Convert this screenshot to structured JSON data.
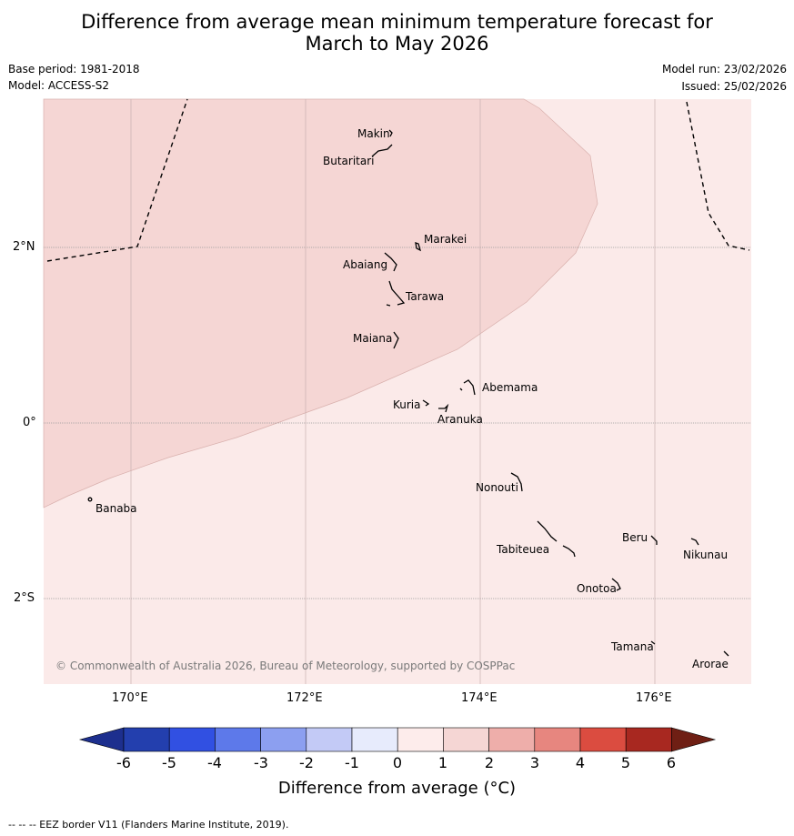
{
  "title": {
    "line1": "Difference from average mean minimum temperature forecast for",
    "line2": "March to May 2026"
  },
  "meta": {
    "base_period": "Base period: 1981-2018",
    "model": "Model: ACCESS-S2",
    "model_run": "Model run: 23/02/2026",
    "issued": "Issued: 25/02/2026"
  },
  "map": {
    "lat_labels": [
      "2°N",
      "0°",
      "2°S"
    ],
    "lon_labels": [
      "170°E",
      "172°E",
      "174°E",
      "176°E"
    ],
    "islands": [
      "Makin",
      "Butaritari",
      "Marakei",
      "Abaiang",
      "Tarawa",
      "Maiana",
      "Abemama",
      "Kuria",
      "Aranuka",
      "Banaba",
      "Nonouti",
      "Beru",
      "Nikunau",
      "Tabiteuea",
      "Onotoa",
      "Tamana",
      "Arorae"
    ],
    "copyright": "© Commonwealth of Australia 2026, Bureau of Meteorology, supported by COSPPac",
    "colors": {
      "zone_1_2": "#f5d6d4",
      "zone_0_1": "#fbeae9",
      "grid": "#999999"
    }
  },
  "colorbar": {
    "ticks": [
      "-6",
      "-5",
      "-4",
      "-3",
      "-2",
      "-1",
      "0",
      "1",
      "2",
      "3",
      "4",
      "5",
      "6"
    ],
    "colors": [
      "#1d2f8e",
      "#233fae",
      "#3150e2",
      "#5d79ea",
      "#8c9ff0",
      "#c3caf6",
      "#e7ebfc",
      "#fdeceb",
      "#f5d6d4",
      "#eeaeaa",
      "#e7867f",
      "#db4c40",
      "#a82820",
      "#6f1f14"
    ],
    "label": "Difference from average ($^\\circ$C)",
    "label_text": "Difference from average (°C)"
  },
  "footnote": "--  --  -- EEZ border V11 (Flanders Marine Institute, 2019)."
}
